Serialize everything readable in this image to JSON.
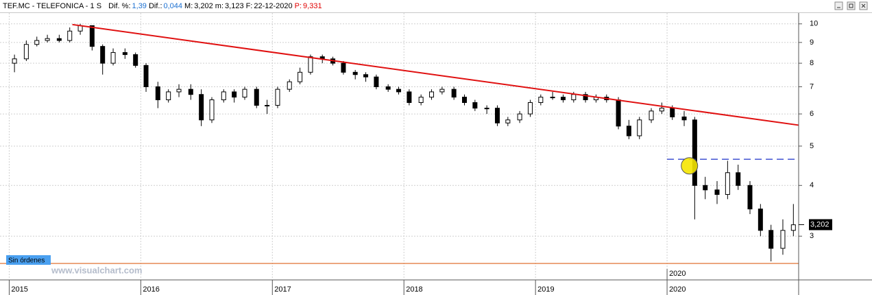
{
  "header": {
    "symbol": "TEF.MC - TELEFONICA - 1 S",
    "fields": [
      {
        "label": "Dif. %:",
        "value": "1,39",
        "color": "#1a6fd0"
      },
      {
        "label": "Dif.:",
        "value": "0,044",
        "color": "#1a6fd0"
      },
      {
        "label": "M:",
        "value": "3,202",
        "color": "#000000"
      },
      {
        "label": "m:",
        "value": "3,123",
        "color": "#000000"
      },
      {
        "label": "F:",
        "value": "22-12-2020",
        "color": "#000000"
      },
      {
        "label": "P:",
        "value": "9,331",
        "color": "#e00000",
        "label_color": "#e00000"
      }
    ]
  },
  "order_status": "Sin órdenes",
  "watermark": "www.visualchart.com",
  "chart_data": {
    "type": "candlestick",
    "log_scale": true,
    "grid": true,
    "x": [
      2015.04,
      2015.13,
      2015.21,
      2015.29,
      2015.38,
      2015.46,
      2015.54,
      2015.63,
      2015.71,
      2015.79,
      2015.88,
      2015.96,
      2016.04,
      2016.13,
      2016.21,
      2016.29,
      2016.38,
      2016.46,
      2016.54,
      2016.63,
      2016.71,
      2016.79,
      2016.88,
      2016.96,
      2017.04,
      2017.13,
      2017.21,
      2017.29,
      2017.38,
      2017.46,
      2017.54,
      2017.63,
      2017.71,
      2017.79,
      2017.88,
      2017.96,
      2018.04,
      2018.13,
      2018.21,
      2018.29,
      2018.38,
      2018.46,
      2018.54,
      2018.63,
      2018.71,
      2018.79,
      2018.88,
      2018.96,
      2019.04,
      2019.13,
      2019.21,
      2019.29,
      2019.38,
      2019.46,
      2019.54,
      2019.63,
      2019.71,
      2019.79,
      2019.88,
      2019.96,
      2020.04,
      2020.13,
      2020.21,
      2020.29,
      2020.38,
      2020.46,
      2020.54,
      2020.63,
      2020.71,
      2020.79,
      2020.88,
      2020.96
    ],
    "open": [
      8.0,
      8.2,
      8.9,
      9.1,
      9.2,
      9.1,
      9.6,
      9.9,
      8.8,
      8.0,
      8.5,
      8.4,
      7.9,
      7.0,
      6.5,
      6.8,
      6.9,
      6.7,
      5.8,
      6.5,
      6.8,
      6.6,
      6.9,
      6.3,
      6.3,
      6.9,
      7.2,
      7.6,
      8.3,
      8.2,
      8.0,
      7.6,
      7.5,
      7.4,
      7.0,
      6.9,
      6.8,
      6.4,
      6.6,
      6.8,
      6.9,
      6.6,
      6.4,
      6.2,
      6.2,
      5.7,
      5.8,
      6.0,
      6.4,
      6.6,
      6.6,
      6.5,
      6.7,
      6.5,
      6.6,
      6.5,
      5.6,
      5.3,
      5.8,
      6.1,
      6.2,
      5.9,
      5.8,
      4.0,
      3.9,
      3.8,
      4.3,
      4.0,
      3.5,
      3.1,
      2.8,
      3.1
    ],
    "high": [
      8.4,
      9.1,
      9.3,
      9.4,
      9.4,
      9.8,
      10.0,
      9.9,
      8.9,
      8.7,
      8.7,
      8.5,
      8.0,
      7.2,
      6.9,
      7.1,
      7.1,
      6.9,
      6.6,
      6.9,
      6.9,
      7.0,
      7.0,
      6.5,
      7.0,
      7.3,
      7.8,
      8.4,
      8.4,
      8.3,
      8.1,
      7.7,
      7.6,
      7.5,
      7.1,
      7.0,
      6.9,
      6.7,
      6.9,
      7.0,
      7.0,
      6.7,
      6.5,
      6.3,
      6.3,
      5.9,
      6.1,
      6.5,
      6.7,
      6.8,
      6.7,
      6.8,
      6.8,
      6.7,
      6.7,
      6.6,
      5.8,
      5.9,
      6.2,
      6.4,
      6.3,
      6.1,
      5.9,
      4.2,
      4.1,
      4.6,
      4.5,
      4.1,
      3.6,
      3.2,
      3.3,
      3.6
    ],
    "low": [
      7.6,
      8.1,
      8.8,
      9.0,
      9.0,
      9.0,
      9.4,
      8.6,
      7.5,
      7.9,
      8.2,
      7.8,
      6.8,
      6.2,
      6.4,
      6.6,
      6.5,
      5.6,
      5.7,
      6.4,
      6.4,
      6.5,
      6.2,
      6.0,
      6.2,
      6.8,
      7.1,
      7.5,
      8.0,
      7.9,
      7.5,
      7.3,
      7.2,
      6.9,
      6.8,
      6.7,
      6.3,
      6.3,
      6.5,
      6.7,
      6.5,
      6.3,
      6.1,
      6.0,
      5.6,
      5.6,
      5.7,
      5.9,
      6.3,
      6.5,
      6.4,
      6.4,
      6.4,
      6.4,
      6.4,
      5.5,
      5.2,
      5.2,
      5.7,
      6.0,
      5.8,
      5.6,
      3.3,
      3.7,
      3.6,
      3.7,
      3.9,
      3.4,
      3.0,
      2.6,
      2.7,
      3.0
    ],
    "close": [
      8.2,
      8.9,
      9.1,
      9.2,
      9.1,
      9.6,
      9.9,
      8.8,
      8.0,
      8.5,
      8.4,
      7.9,
      7.0,
      6.5,
      6.8,
      6.9,
      6.7,
      5.8,
      6.5,
      6.8,
      6.6,
      6.9,
      6.3,
      6.3,
      6.9,
      7.2,
      7.6,
      8.3,
      8.2,
      8.0,
      7.6,
      7.5,
      7.4,
      7.0,
      6.9,
      6.8,
      6.4,
      6.6,
      6.8,
      6.9,
      6.6,
      6.4,
      6.2,
      6.2,
      5.7,
      5.8,
      6.0,
      6.4,
      6.6,
      6.6,
      6.5,
      6.7,
      6.5,
      6.6,
      6.5,
      5.6,
      5.3,
      5.8,
      6.1,
      6.2,
      5.9,
      5.8,
      4.0,
      3.9,
      3.8,
      4.3,
      4.0,
      3.5,
      3.1,
      2.8,
      3.1,
      3.2
    ],
    "xlim": [
      2014.93,
      2021.0
    ],
    "xticks": [
      2015,
      2016,
      2017,
      2018,
      2019,
      2020
    ],
    "ylim": [
      2.35,
      10.8
    ],
    "yticks": [
      3,
      4,
      5,
      6,
      7,
      8,
      9,
      10
    ],
    "last_price": {
      "value": 3.202,
      "label": "3,202"
    },
    "cursor": {
      "value": 2020.0,
      "label": "2020"
    },
    "annotations": {
      "trend_line": {
        "x": [
          2015.48,
          2021.0
        ],
        "y": [
          9.96,
          5.63
        ],
        "color": "#e01010"
      },
      "dashed_line": {
        "x": [
          2020.0,
          2020.98
        ],
        "y": 4.64,
        "color": "#1a2fc8"
      },
      "marker": {
        "x": 2020.17,
        "y": 4.47,
        "color": "#f5e600"
      },
      "support_line": {
        "y": 2.57,
        "color": "#e07030"
      }
    }
  }
}
